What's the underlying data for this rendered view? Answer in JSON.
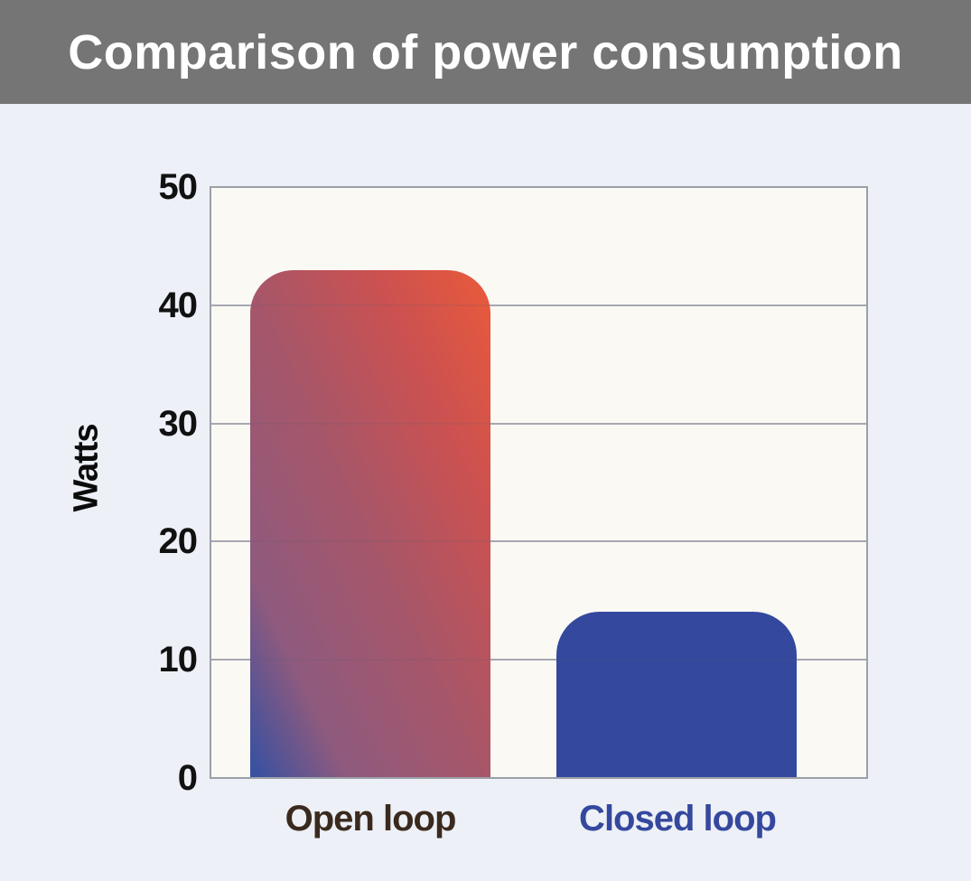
{
  "header": {
    "title": "Comparison of power consumption"
  },
  "chart_data": {
    "type": "bar",
    "title": "Comparison of power consumption",
    "xlabel": "",
    "ylabel": "Watts",
    "categories": [
      "Open loop",
      "Closed loop"
    ],
    "values": [
      43,
      14
    ],
    "ylim": [
      0,
      50
    ],
    "yticks": [
      0,
      10,
      20,
      30,
      40,
      50
    ],
    "grid": true,
    "legend": false,
    "bar_styles": [
      {
        "fill": "gradient",
        "gradient_direction": "to top right",
        "gradient_stops": [
          {
            "color": "#3350a3",
            "pos": "0%"
          },
          {
            "color": "#8e5a7e",
            "pos": "20%"
          },
          {
            "color": "#a85668",
            "pos": "50%"
          },
          {
            "color": "#cc5150",
            "pos": "76%"
          },
          {
            "color": "#ea5a3a",
            "pos": "100%"
          }
        ]
      },
      {
        "fill": "solid",
        "color": "#34489e"
      }
    ],
    "category_label_colors": [
      "#3a2a1e",
      "#35489e"
    ]
  },
  "colors": {
    "page_background": "#edf0f6",
    "header_background": "#757575",
    "header_text": "#ffffff",
    "plot_background": "#faf9f4",
    "plot_border": "#9ba0a8",
    "gridline": "#b4b4bc",
    "tick_text": "#111111"
  }
}
